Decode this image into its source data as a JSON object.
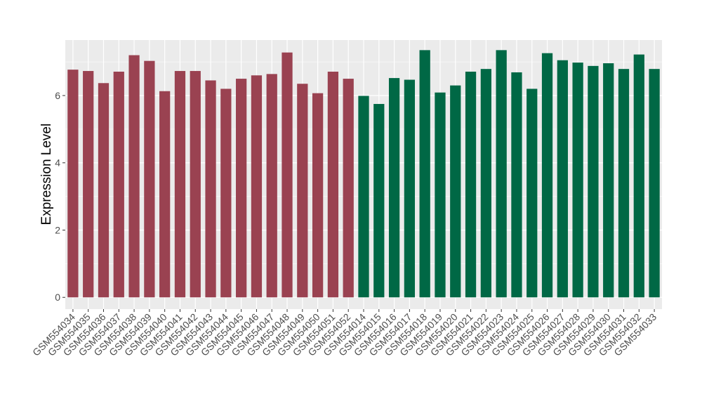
{
  "chart_data": {
    "type": "bar",
    "title": "",
    "xlabel": "",
    "ylabel": "Expression Level",
    "ylim": [
      -0.35,
      7.65
    ],
    "yticks": [
      0,
      2,
      4,
      6
    ],
    "grid": true,
    "legend": "none",
    "categories": [
      "GSM554034",
      "GSM554035",
      "GSM554036",
      "GSM554037",
      "GSM554038",
      "GSM554039",
      "GSM554040",
      "GSM554041",
      "GSM554042",
      "GSM554043",
      "GSM554044",
      "GSM554045",
      "GSM554046",
      "GSM554047",
      "GSM554048",
      "GSM554049",
      "GSM554050",
      "GSM554051",
      "GSM554052",
      "GSM554014",
      "GSM554015",
      "GSM554016",
      "GSM554017",
      "GSM554018",
      "GSM554019",
      "GSM554020",
      "GSM554021",
      "GSM554022",
      "GSM554023",
      "GSM554024",
      "GSM554025",
      "GSM554026",
      "GSM554027",
      "GSM554028",
      "GSM554029",
      "GSM554030",
      "GSM554031",
      "GSM554032",
      "GSM554033"
    ],
    "values": [
      6.77,
      6.73,
      6.37,
      6.71,
      7.2,
      7.03,
      6.13,
      6.73,
      6.73,
      6.45,
      6.2,
      6.5,
      6.6,
      6.64,
      7.28,
      6.35,
      6.07,
      6.71,
      6.5,
      5.99,
      5.75,
      6.52,
      6.47,
      7.35,
      6.09,
      6.3,
      6.71,
      6.79,
      7.35,
      6.69,
      6.2,
      7.26,
      7.05,
      6.98,
      6.88,
      6.96,
      6.79,
      7.22,
      6.79
    ],
    "groups": [
      0,
      0,
      0,
      0,
      0,
      0,
      0,
      0,
      0,
      0,
      0,
      0,
      0,
      0,
      0,
      0,
      0,
      0,
      0,
      1,
      1,
      1,
      1,
      1,
      1,
      1,
      1,
      1,
      1,
      1,
      1,
      1,
      1,
      1,
      1,
      1,
      1,
      1,
      1
    ],
    "group_colors": [
      "#9A4251",
      "#006845"
    ],
    "panel_color": "#EBEBEB"
  }
}
